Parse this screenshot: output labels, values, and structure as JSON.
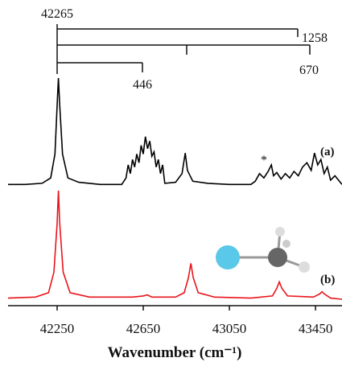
{
  "chart_data": {
    "type": "line",
    "x_label": "Wavenumber (cm⁻¹)",
    "xlim": [
      42022,
      43573
    ],
    "xticks": [
      42250,
      42650,
      43050,
      43450
    ],
    "annotations": [
      "42265",
      "1258",
      "670",
      "446",
      "*"
    ],
    "series": [
      {
        "name": "(a)",
        "color": "#000000",
        "x": [
          42022,
          42100,
          42180,
          42220,
          42240,
          42250,
          42256,
          42262,
          42275,
          42300,
          42350,
          42450,
          42550,
          42570,
          42580,
          42590,
          42600,
          42610,
          42620,
          42630,
          42640,
          42650,
          42660,
          42670,
          42680,
          42690,
          42700,
          42710,
          42720,
          42730,
          42740,
          42750,
          42800,
          42830,
          42845,
          42855,
          42880,
          42950,
          43050,
          43150,
          43170,
          43190,
          43210,
          43230,
          43245,
          43255,
          43270,
          43290,
          43310,
          43330,
          43350,
          43370,
          43390,
          43410,
          43430,
          43445,
          43460,
          43475,
          43490,
          43505,
          43520,
          43540,
          43573
        ],
        "values": [
          0.02,
          0.02,
          0.03,
          0.08,
          0.3,
          0.75,
          1.0,
          0.75,
          0.3,
          0.08,
          0.04,
          0.02,
          0.02,
          0.08,
          0.2,
          0.12,
          0.25,
          0.18,
          0.3,
          0.22,
          0.38,
          0.3,
          0.46,
          0.35,
          0.42,
          0.28,
          0.32,
          0.18,
          0.25,
          0.12,
          0.2,
          0.03,
          0.04,
          0.12,
          0.31,
          0.15,
          0.05,
          0.03,
          0.02,
          0.02,
          0.05,
          0.12,
          0.08,
          0.14,
          0.2,
          0.1,
          0.13,
          0.07,
          0.12,
          0.08,
          0.14,
          0.1,
          0.18,
          0.22,
          0.15,
          0.31,
          0.2,
          0.25,
          0.12,
          0.18,
          0.06,
          0.1,
          0.02
        ]
      },
      {
        "name": "(b)",
        "color": "#e8141b",
        "x": [
          42022,
          42150,
          42210,
          42235,
          42250,
          42256,
          42262,
          42278,
          42310,
          42400,
          42600,
          42650,
          42669,
          42690,
          42800,
          42840,
          42860,
          42871,
          42882,
          42905,
          42980,
          43150,
          43250,
          43270,
          43282,
          43294,
          43320,
          43440,
          43470,
          43480,
          43490,
          43520,
          43573
        ],
        "values": [
          0.01,
          0.02,
          0.06,
          0.25,
          0.7,
          1.0,
          0.7,
          0.25,
          0.06,
          0.02,
          0.02,
          0.03,
          0.04,
          0.02,
          0.02,
          0.06,
          0.2,
          0.33,
          0.2,
          0.06,
          0.02,
          0.01,
          0.03,
          0.1,
          0.16,
          0.1,
          0.03,
          0.02,
          0.05,
          0.07,
          0.05,
          0.01,
          0
        ]
      }
    ]
  }
}
